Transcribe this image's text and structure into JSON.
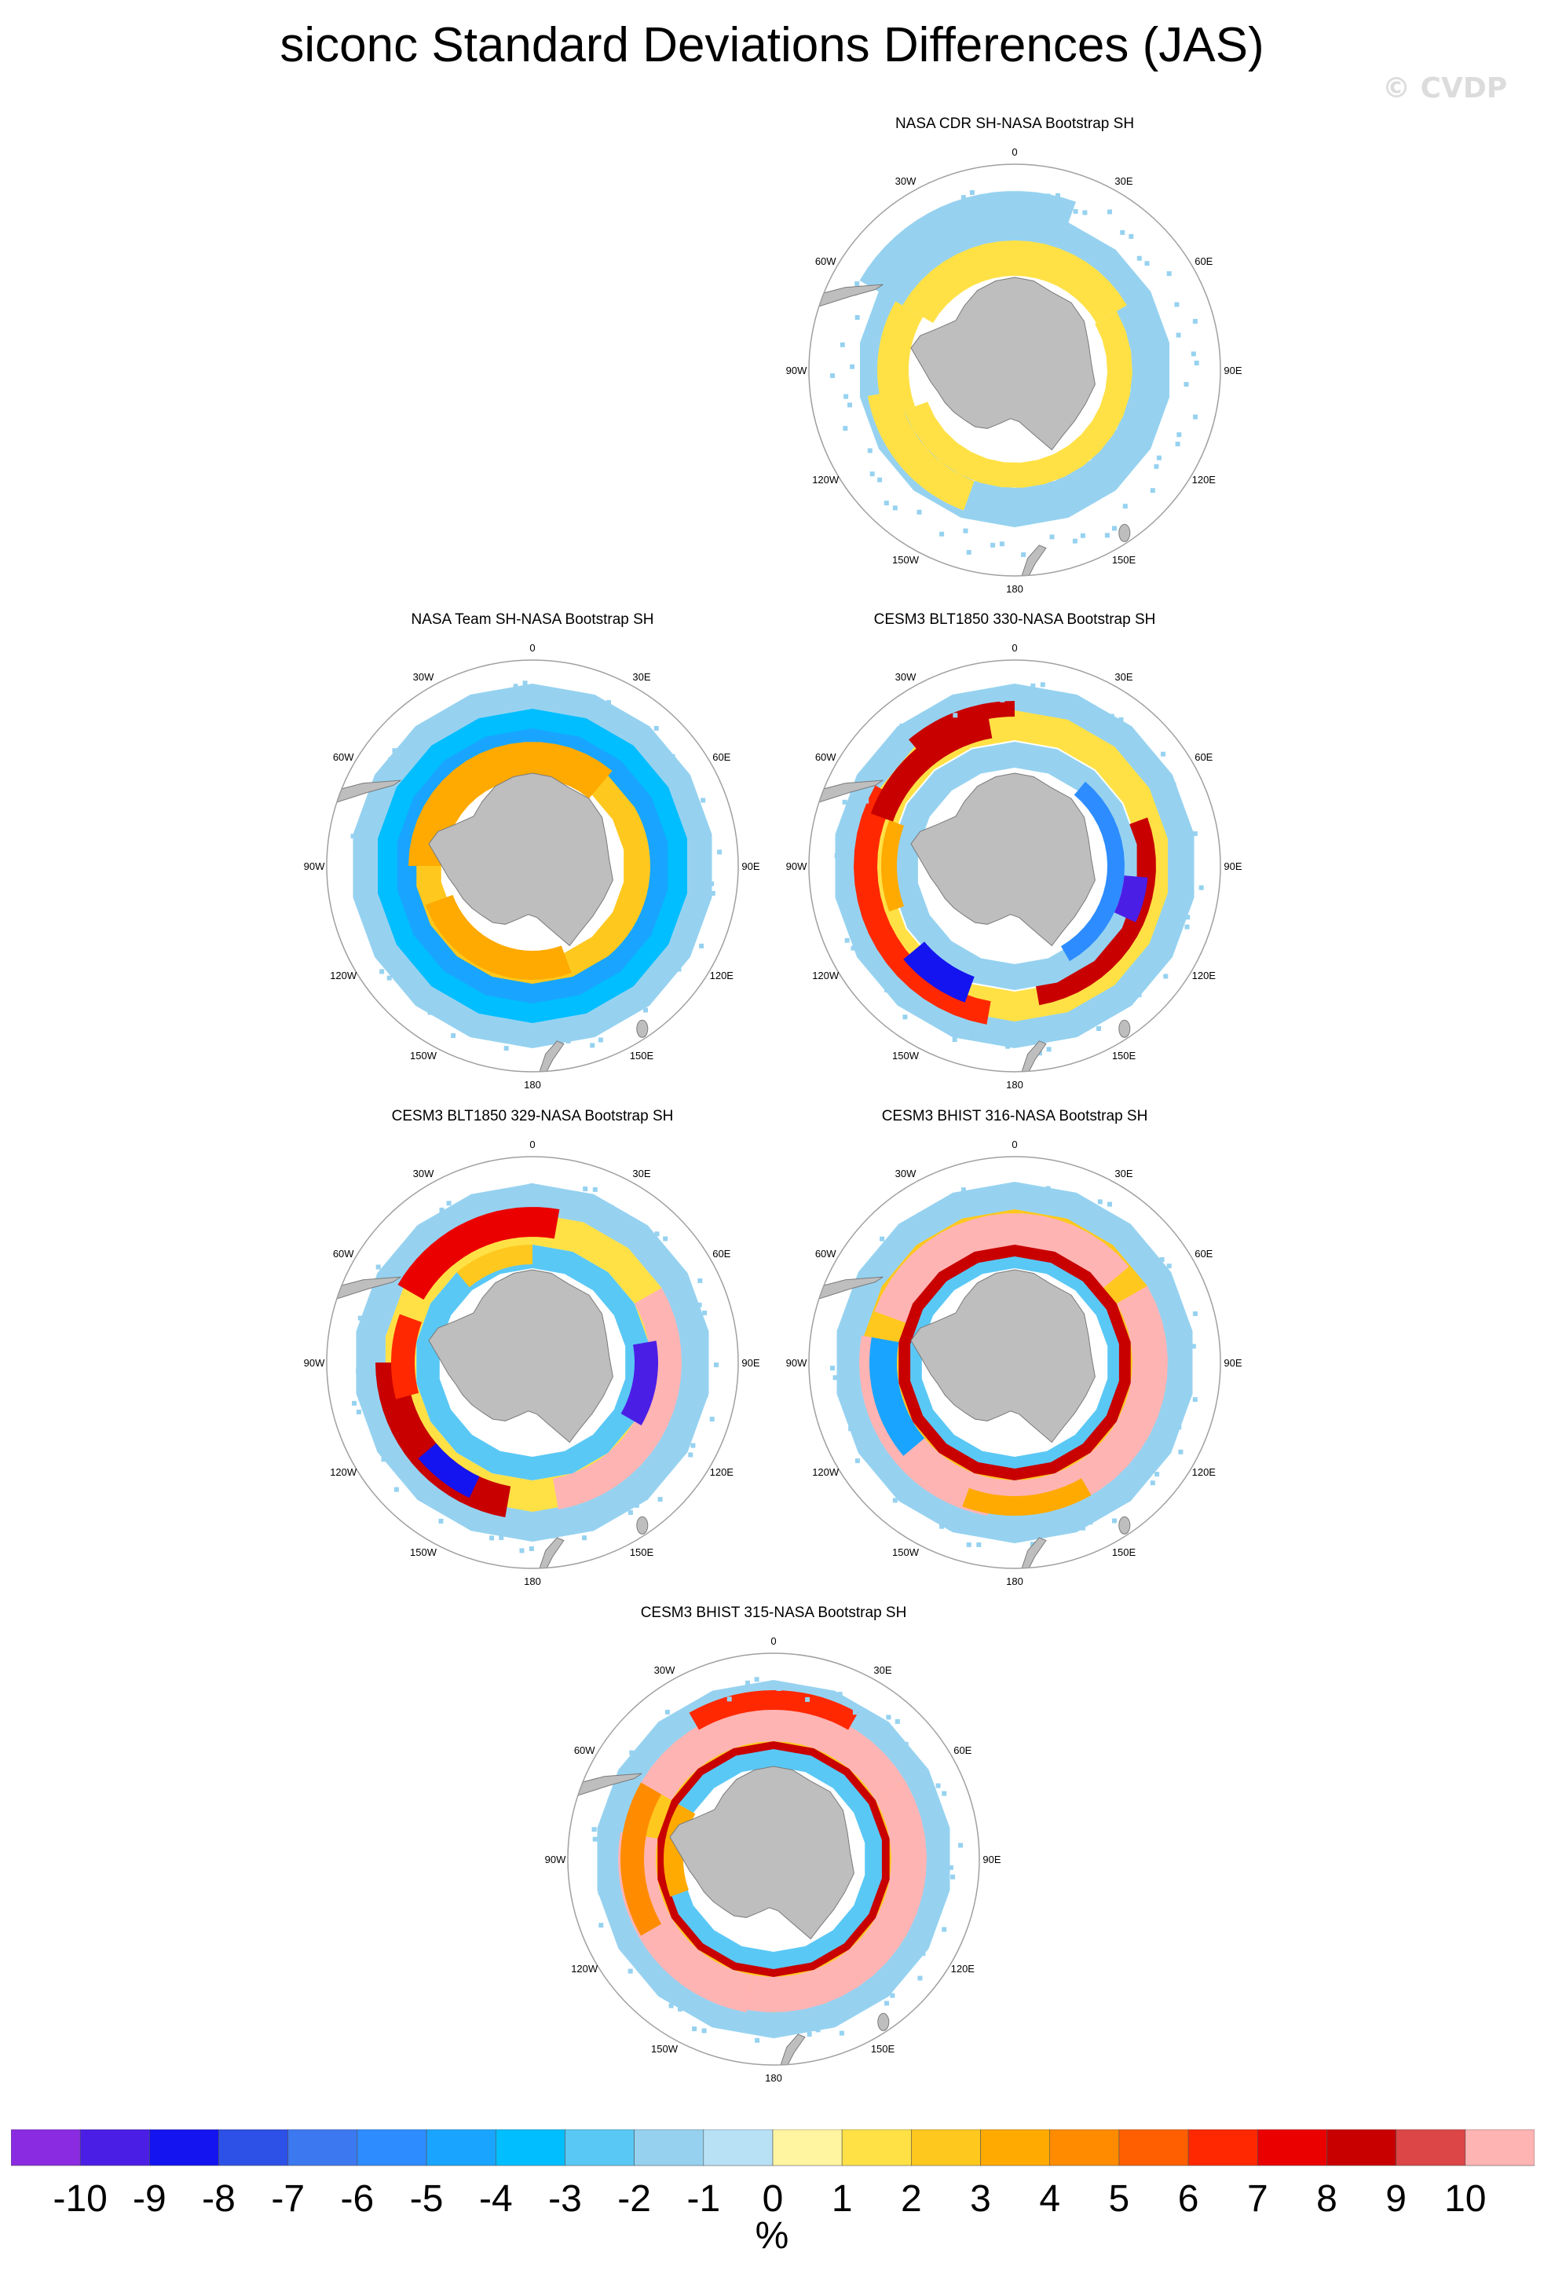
{
  "title": "siconc Standard Deviations Differences (JAS)",
  "watermark": "© CVDP",
  "lon_labels": {
    "0": "0",
    "30E": "30E",
    "60E": "60E",
    "90E": "90E",
    "120E": "120E",
    "150E": "150E",
    "180": "180",
    "150W": "150W",
    "120W": "120W",
    "90W": "90W",
    "60W": "60W",
    "30W": "30W"
  },
  "panels": [
    {
      "id": "p1",
      "title": "NASA CDR SH-NASA Bootstrap SH",
      "pattern": "cdr"
    },
    {
      "id": "p2",
      "title": "NASA Team SH-NASA Bootstrap SH",
      "pattern": "team"
    },
    {
      "id": "p3",
      "title": "CESM3 BLT1850 330-NASA Bootstrap SH",
      "pattern": "blt330"
    },
    {
      "id": "p4",
      "title": "CESM3 BLT1850 329-NASA Bootstrap SH",
      "pattern": "blt329"
    },
    {
      "id": "p5",
      "title": "CESM3 BHIST 316-NASA Bootstrap SH",
      "pattern": "bhist316"
    },
    {
      "id": "p6",
      "title": "CESM3 BHIST 315-NASA Bootstrap SH",
      "pattern": "bhist315"
    }
  ],
  "colorbar": {
    "unit": "%",
    "tick_labels": [
      "-10",
      "-9",
      "-8",
      "-7",
      "-6",
      "-5",
      "-4",
      "-3",
      "-2",
      "-1",
      "0",
      "1",
      "2",
      "3",
      "4",
      "5",
      "6",
      "7",
      "8",
      "9",
      "10"
    ],
    "colors": [
      "#8a2be2",
      "#4b1ee6",
      "#1414f0",
      "#2d50e6",
      "#3c78f0",
      "#2d8cff",
      "#19a5ff",
      "#00beff",
      "#5ac8f5",
      "#96d2f0",
      "#b9e1f5",
      "#fff5a0",
      "#ffe146",
      "#ffc81e",
      "#ffaa00",
      "#ff8c00",
      "#ff5f00",
      "#ff2800",
      "#eb0000",
      "#c80000",
      "#dc4646",
      "#ffb4b4"
    ]
  },
  "colors": {
    "land": "#bebebe",
    "land_edge": "#7a7a7a",
    "circle": "#a0a0a0"
  }
}
